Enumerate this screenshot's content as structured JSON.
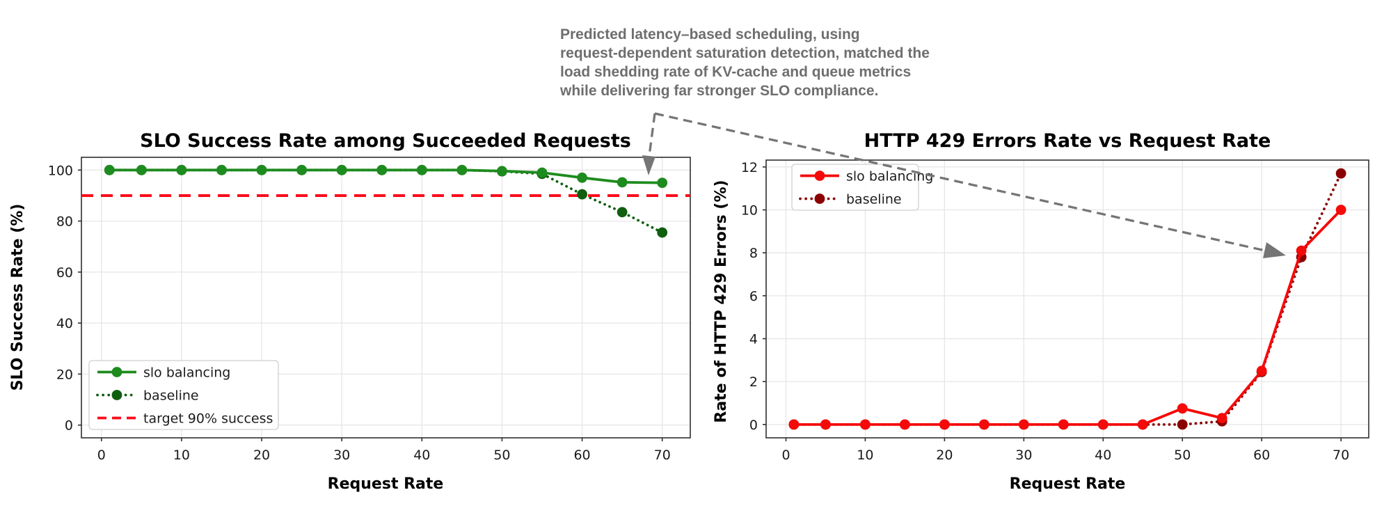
{
  "annotation": {
    "lines": [
      "Predicted latency–based scheduling, using",
      "request-dependent saturation detection, matched the",
      "load shedding rate of KV-cache and queue metrics",
      "while delivering far stronger SLO compliance."
    ],
    "text_color": "#6e6e6e",
    "arrow_color": "#757575"
  },
  "chart_data": [
    {
      "type": "line",
      "title": "SLO Success Rate among Succeeded Requests",
      "xlabel": "Request Rate",
      "ylabel": "SLO Success Rate (%)",
      "x": [
        1,
        5,
        10,
        15,
        20,
        25,
        30,
        35,
        40,
        45,
        50,
        55,
        60,
        65,
        70
      ],
      "xticks": [
        0,
        10,
        20,
        30,
        40,
        50,
        60,
        70
      ],
      "yticks": [
        0,
        20,
        40,
        60,
        80,
        100
      ],
      "xlim": [
        -2.5,
        73.5
      ],
      "ylim": [
        -5,
        105
      ],
      "grid": true,
      "legend_position": "lower left",
      "series": [
        {
          "name": "slo balancing",
          "style": "solid",
          "marker": "circle",
          "color": "#1e8b1e",
          "values": [
            100,
            100,
            100,
            100,
            100,
            100,
            100,
            100,
            100,
            100,
            99.6,
            99,
            97,
            95.2,
            95
          ]
        },
        {
          "name": "baseline",
          "style": "dotted",
          "marker": "circle",
          "color": "#0f5f0f",
          "values": [
            100,
            100,
            100,
            100,
            100,
            100,
            100,
            100,
            100,
            100,
            99.5,
            98.5,
            90.5,
            83.5,
            75.5
          ]
        }
      ],
      "reference_lines": [
        {
          "name": "target 90% success",
          "y": 90,
          "style": "dashed",
          "color": "#fb0d1b"
        }
      ]
    },
    {
      "type": "line",
      "title": "HTTP 429 Errors Rate vs Request Rate",
      "xlabel": "Request Rate",
      "ylabel": "Rate of HTTP 429 Errors (%)",
      "x": [
        1,
        5,
        10,
        15,
        20,
        25,
        30,
        35,
        40,
        45,
        50,
        55,
        60,
        65,
        70
      ],
      "xticks": [
        0,
        10,
        20,
        30,
        40,
        50,
        60,
        70
      ],
      "yticks": [
        0,
        2,
        4,
        6,
        8,
        10,
        12
      ],
      "xlim": [
        -2.5,
        73.5
      ],
      "ylim": [
        -0.62,
        12.32
      ],
      "grid": true,
      "legend_position": "upper left",
      "series": [
        {
          "name": "slo balancing",
          "style": "solid",
          "marker": "circle",
          "color": "#f50a0a",
          "values": [
            0,
            0,
            0,
            0,
            0,
            0,
            0,
            0,
            0,
            0,
            0.75,
            0.3,
            2.5,
            8.1,
            10.0
          ]
        },
        {
          "name": "baseline",
          "style": "dotted",
          "marker": "circle",
          "color": "#8b0000",
          "values": [
            0,
            0,
            0,
            0,
            0,
            0,
            0,
            0,
            0,
            0,
            0,
            0.15,
            2.45,
            7.8,
            11.7
          ]
        }
      ],
      "reference_lines": []
    }
  ]
}
